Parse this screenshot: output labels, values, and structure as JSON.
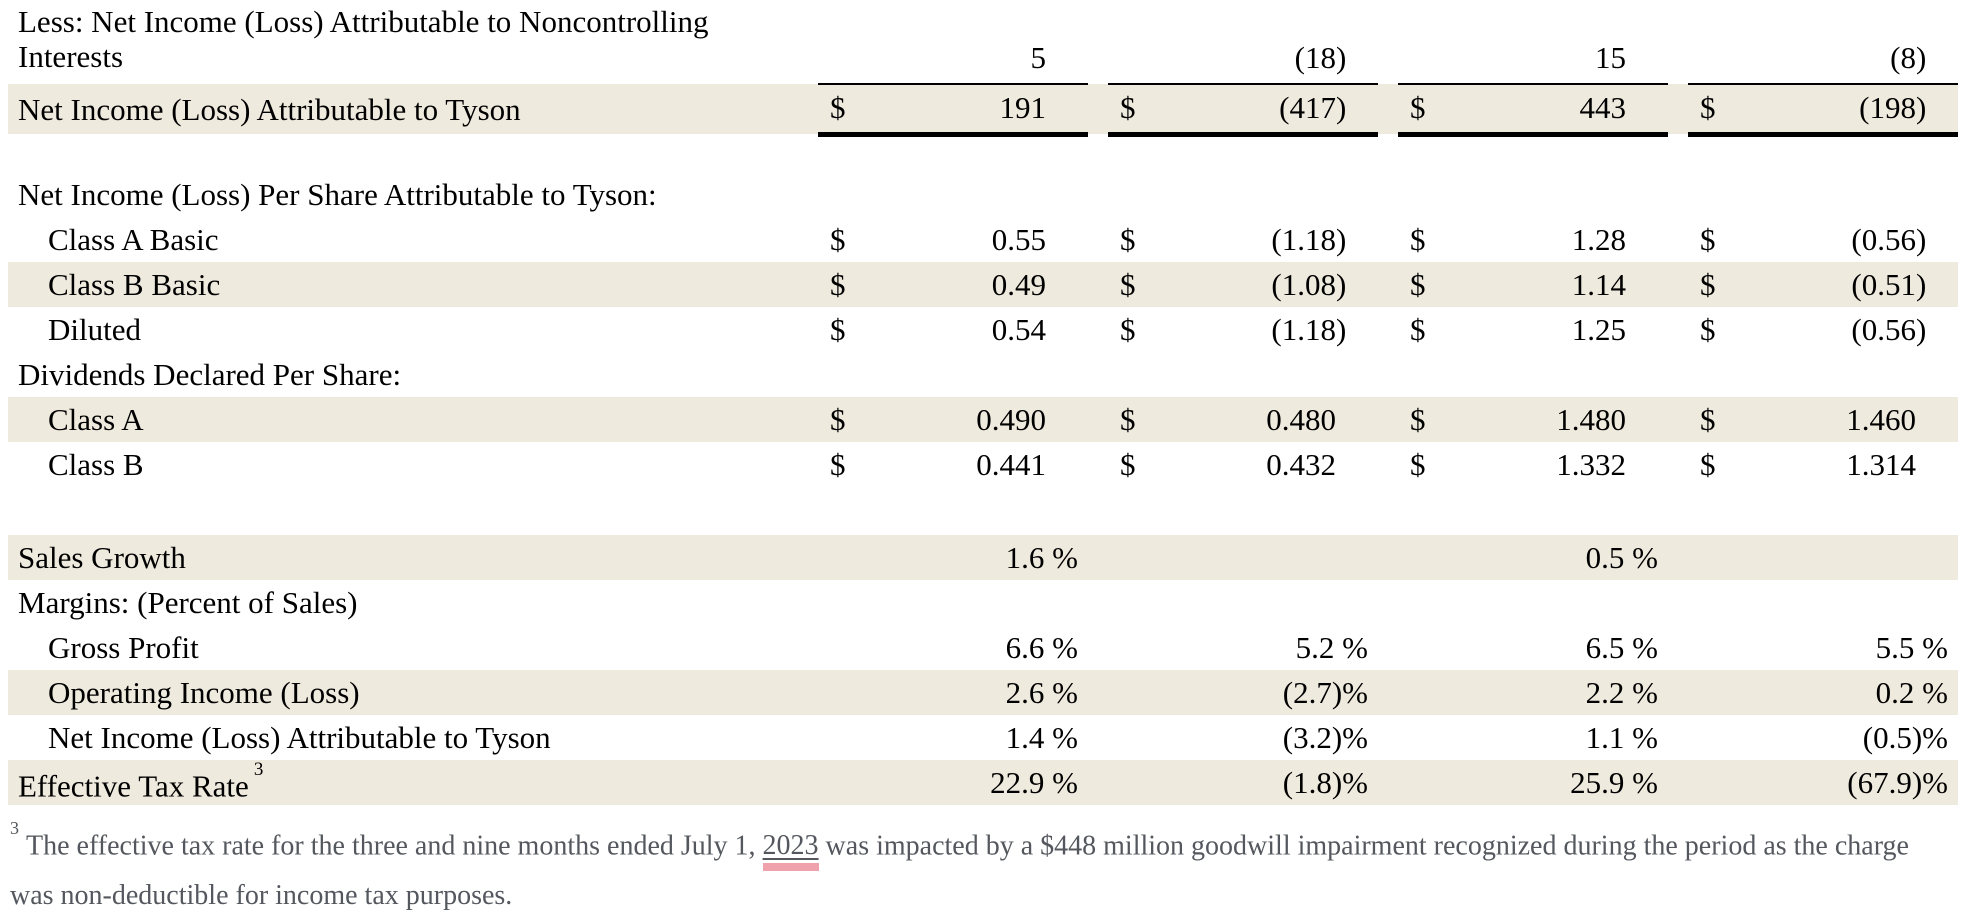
{
  "colors": {
    "row_shading": "#efeade",
    "highlight_underline": "#f0a2ac",
    "footnote_text": "#54585e",
    "table_text": "#000000",
    "rule": "#000000"
  },
  "table": {
    "rows": [
      {
        "type": "twoline",
        "label": "Less: Net Income (Loss) Attributable to Noncontrolling Interests",
        "indent": 0,
        "shaded": false,
        "cells": [
          {
            "v": "5"
          },
          {
            "v": "(18)"
          },
          {
            "v": "15"
          },
          {
            "v": "(8)"
          }
        ]
      },
      {
        "type": "row",
        "total": true,
        "label": "Net Income (Loss) Attributable to Tyson",
        "indent": 0,
        "shaded": true,
        "cells": [
          {
            "d": "$",
            "v": "191"
          },
          {
            "d": "$",
            "v": "(417)"
          },
          {
            "d": "$",
            "v": "443"
          },
          {
            "d": "$",
            "v": "(198)"
          }
        ]
      },
      {
        "type": "gap"
      },
      {
        "type": "heading",
        "label": "Net Income (Loss) Per Share Attributable to Tyson:"
      },
      {
        "type": "row",
        "label": "Class A Basic",
        "indent": 1,
        "shaded": false,
        "cells": [
          {
            "d": "$",
            "v": "0.55"
          },
          {
            "d": "$",
            "v": "(1.18)"
          },
          {
            "d": "$",
            "v": "1.28"
          },
          {
            "d": "$",
            "v": "(0.56)"
          }
        ]
      },
      {
        "type": "row",
        "label": "Class B Basic",
        "indent": 1,
        "shaded": true,
        "cells": [
          {
            "d": "$",
            "v": "0.49"
          },
          {
            "d": "$",
            "v": "(1.08)"
          },
          {
            "d": "$",
            "v": "1.14"
          },
          {
            "d": "$",
            "v": "(0.51)"
          }
        ]
      },
      {
        "type": "row",
        "label": "Diluted",
        "indent": 1,
        "shaded": false,
        "cells": [
          {
            "d": "$",
            "v": "0.54"
          },
          {
            "d": "$",
            "v": "(1.18)"
          },
          {
            "d": "$",
            "v": "1.25"
          },
          {
            "d": "$",
            "v": "(0.56)"
          }
        ]
      },
      {
        "type": "heading",
        "label": "Dividends Declared Per Share:"
      },
      {
        "type": "row",
        "label": "Class A",
        "indent": 1,
        "shaded": true,
        "cells": [
          {
            "d": "$",
            "v": "0.490"
          },
          {
            "d": "$",
            "v": "0.480"
          },
          {
            "d": "$",
            "v": "1.480"
          },
          {
            "d": "$",
            "v": "1.460"
          }
        ]
      },
      {
        "type": "row",
        "label": "Class B",
        "indent": 1,
        "shaded": false,
        "cells": [
          {
            "d": "$",
            "v": "0.441"
          },
          {
            "d": "$",
            "v": "0.432"
          },
          {
            "d": "$",
            "v": "1.332"
          },
          {
            "d": "$",
            "v": "1.314"
          }
        ]
      },
      {
        "type": "blank"
      },
      {
        "type": "row",
        "label": "Sales Growth",
        "indent": 0,
        "shaded": true,
        "pct": true,
        "cells": [
          {
            "v": "1.6 %"
          },
          {
            "v": ""
          },
          {
            "v": "0.5 %"
          },
          {
            "v": ""
          }
        ]
      },
      {
        "type": "heading",
        "label": "Margins: (Percent of Sales)"
      },
      {
        "type": "row",
        "label": "Gross Profit",
        "indent": 1,
        "shaded": false,
        "pct": true,
        "cells": [
          {
            "v": "6.6 %"
          },
          {
            "v": "5.2 %"
          },
          {
            "v": "6.5 %"
          },
          {
            "v": "5.5 %"
          }
        ]
      },
      {
        "type": "row",
        "label": "Operating Income (Loss)",
        "indent": 1,
        "shaded": true,
        "pct": true,
        "cells": [
          {
            "v": "2.6 %"
          },
          {
            "v": "(2.7)%"
          },
          {
            "v": "2.2 %"
          },
          {
            "v": "0.2 %"
          }
        ]
      },
      {
        "type": "row",
        "label": "Net Income (Loss) Attributable to Tyson",
        "indent": 1,
        "shaded": false,
        "pct": true,
        "cells": [
          {
            "v": "1.4 %"
          },
          {
            "v": "(3.2)%"
          },
          {
            "v": "1.1 %"
          },
          {
            "v": "(0.5)%"
          }
        ]
      },
      {
        "type": "row",
        "label": "Effective Tax Rate",
        "sup": "3",
        "indent": 0,
        "shaded": true,
        "pct": true,
        "cells": [
          {
            "v": "22.9 %"
          },
          {
            "v": "(1.8)%"
          },
          {
            "v": "25.9 %"
          },
          {
            "v": "(67.9)%"
          }
        ]
      }
    ]
  },
  "footnote": {
    "sup": "3",
    "before": "The effective tax rate for the three and nine months ended July 1, ",
    "year_highlighted": "2023",
    "after": " was impacted by a $448 million goodwill impairment recognized during the period as the charge was non-deductible for income tax purposes."
  }
}
